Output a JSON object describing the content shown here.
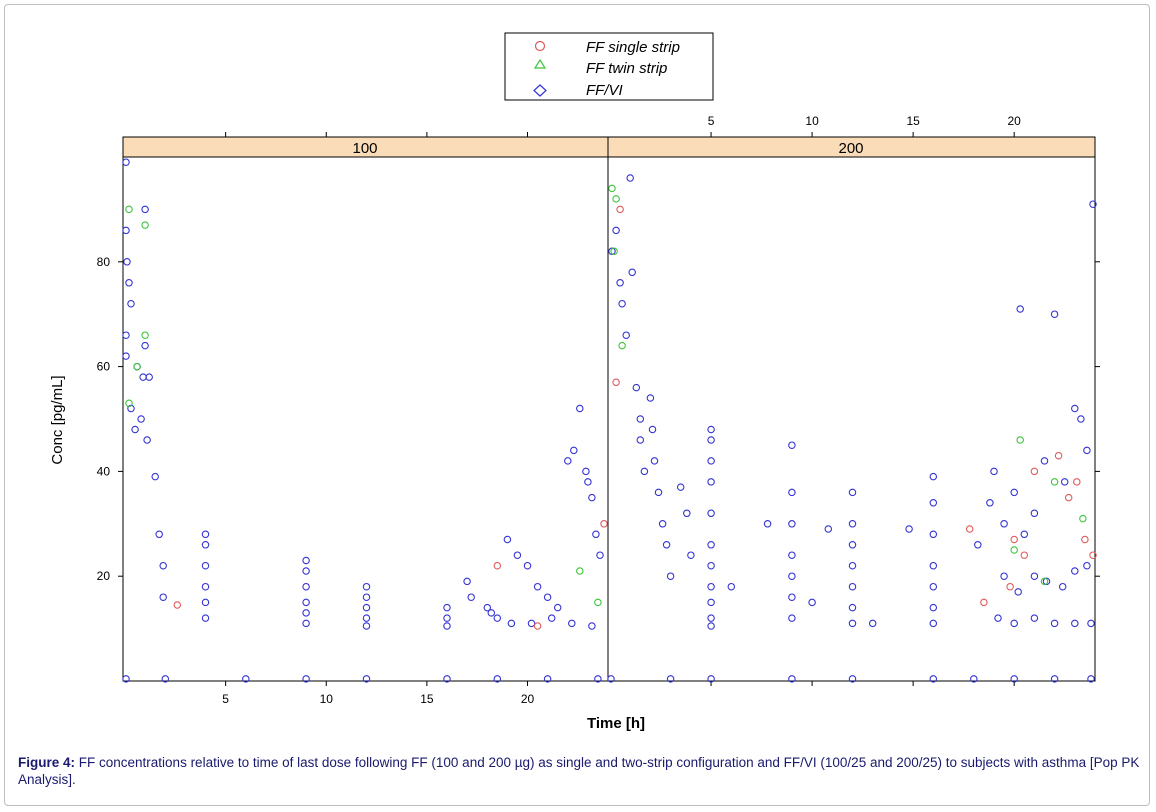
{
  "caption": {
    "label": "Figure 4:",
    "text": " FF concentrations relative to time of last dose following FF (100 and 200 µg) as single and two-strip configuration and FF/VI (100/25 and 200/25) to subjects with asthma [Pop PK Analysis]."
  },
  "chart_data": {
    "type": "scatter",
    "xlabel": "Time [h]",
    "ylabel": "Conc [pg/mL]",
    "xlim": [
      -0.1,
      24
    ],
    "ylim": [
      0,
      100
    ],
    "x_ticks": [
      "5",
      "10",
      "15",
      "20"
    ],
    "y_ticks": [
      "20",
      "40",
      "60",
      "80"
    ],
    "legend": [
      {
        "name": "FF single strip",
        "marker": "circle",
        "color": "#e05a5a"
      },
      {
        "name": "FF twin strip",
        "marker": "triangle",
        "color": "#3ec43e"
      },
      {
        "name": "FF/VI",
        "marker": "diamond",
        "color": "#3434d4"
      }
    ],
    "panels": [
      {
        "strip": "100",
        "series": [
          {
            "name": "FF/VI",
            "points": [
              [
                0.05,
                99
              ],
              [
                0.05,
                86
              ],
              [
                0.1,
                80
              ],
              [
                0.2,
                76
              ],
              [
                0.3,
                72
              ],
              [
                0.6,
                60
              ],
              [
                0.9,
                58
              ],
              [
                1.0,
                64
              ],
              [
                1.2,
                58
              ],
              [
                1.0,
                90
              ],
              [
                0.05,
                66
              ],
              [
                0.05,
                62
              ],
              [
                0.3,
                52
              ],
              [
                0.5,
                48
              ],
              [
                0.8,
                50
              ],
              [
                1.1,
                46
              ],
              [
                1.5,
                39
              ],
              [
                1.7,
                28
              ],
              [
                1.9,
                22
              ],
              [
                1.9,
                16
              ],
              [
                4.0,
                28
              ],
              [
                4.0,
                26
              ],
              [
                4.0,
                22
              ],
              [
                4.0,
                18
              ],
              [
                4.0,
                15
              ],
              [
                4.0,
                12
              ],
              [
                9.0,
                23
              ],
              [
                9.0,
                21
              ],
              [
                9.0,
                18
              ],
              [
                9.0,
                15
              ],
              [
                9.0,
                13
              ],
              [
                9.0,
                11
              ],
              [
                12.0,
                18
              ],
              [
                12.0,
                16
              ],
              [
                12.0,
                14
              ],
              [
                12.0,
                12
              ],
              [
                12.0,
                10.5
              ],
              [
                16.0,
                14
              ],
              [
                16.0,
                12
              ],
              [
                16.0,
                10.5
              ],
              [
                17.0,
                19
              ],
              [
                17.2,
                16
              ],
              [
                18.0,
                14
              ],
              [
                18.5,
                12
              ],
              [
                19.0,
                27
              ],
              [
                19.5,
                24
              ],
              [
                20.0,
                22
              ],
              [
                20.5,
                18
              ],
              [
                21.0,
                16
              ],
              [
                21.5,
                14
              ],
              [
                22.0,
                42
              ],
              [
                22.3,
                44
              ],
              [
                22.6,
                52
              ],
              [
                22.9,
                40
              ],
              [
                23.0,
                38
              ],
              [
                23.2,
                35
              ],
              [
                23.4,
                28
              ],
              [
                23.6,
                24
              ],
              [
                19.2,
                11
              ],
              [
                20.2,
                11
              ],
              [
                21.2,
                12
              ],
              [
                22.2,
                11
              ],
              [
                23.2,
                10.5
              ],
              [
                18.2,
                13
              ],
              [
                0.05,
                0.4
              ],
              [
                2.0,
                0.4
              ],
              [
                6.0,
                0.4
              ],
              [
                9.0,
                0.4
              ],
              [
                12.0,
                0.4
              ],
              [
                16.0,
                0.4
              ],
              [
                18.5,
                0.4
              ],
              [
                21.0,
                0.4
              ],
              [
                23.5,
                0.4
              ]
            ]
          },
          {
            "name": "FF single strip",
            "points": [
              [
                2.6,
                14.5
              ],
              [
                18.5,
                22
              ],
              [
                20.5,
                10.5
              ],
              [
                23.8,
                30
              ]
            ]
          },
          {
            "name": "FF twin strip",
            "points": [
              [
                0.2,
                90
              ],
              [
                1.0,
                87
              ],
              [
                1.0,
                66
              ],
              [
                0.6,
                60
              ],
              [
                0.2,
                53
              ],
              [
                22.6,
                21
              ],
              [
                23.5,
                15
              ]
            ]
          }
        ]
      },
      {
        "strip": "200",
        "series": [
          {
            "name": "FF/VI",
            "points": [
              [
                0.1,
                82
              ],
              [
                0.3,
                86
              ],
              [
                0.5,
                76
              ],
              [
                0.6,
                72
              ],
              [
                0.8,
                66
              ],
              [
                1.0,
                96
              ],
              [
                1.1,
                78
              ],
              [
                1.3,
                56
              ],
              [
                1.5,
                50
              ],
              [
                1.5,
                46
              ],
              [
                1.7,
                40
              ],
              [
                2.0,
                54
              ],
              [
                2.1,
                48
              ],
              [
                2.2,
                42
              ],
              [
                2.4,
                36
              ],
              [
                2.6,
                30
              ],
              [
                2.8,
                26
              ],
              [
                3.0,
                20
              ],
              [
                3.5,
                37
              ],
              [
                3.8,
                32
              ],
              [
                4.0,
                24
              ],
              [
                5.0,
                48
              ],
              [
                5.0,
                46
              ],
              [
                5.0,
                42
              ],
              [
                5.0,
                38
              ],
              [
                5.0,
                32
              ],
              [
                5.0,
                26
              ],
              [
                5.0,
                22
              ],
              [
                5.0,
                18
              ],
              [
                5.0,
                15
              ],
              [
                5.0,
                12
              ],
              [
                5.0,
                10.5
              ],
              [
                6.0,
                18
              ],
              [
                7.8,
                30
              ],
              [
                9.0,
                45
              ],
              [
                9.0,
                36
              ],
              [
                9.0,
                30
              ],
              [
                9.0,
                24
              ],
              [
                9.0,
                20
              ],
              [
                9.0,
                16
              ],
              [
                9.0,
                12
              ],
              [
                10.0,
                15
              ],
              [
                10.8,
                29
              ],
              [
                12.0,
                36
              ],
              [
                12.0,
                30
              ],
              [
                12.0,
                26
              ],
              [
                12.0,
                22
              ],
              [
                12.0,
                18
              ],
              [
                12.0,
                14
              ],
              [
                12.0,
                11
              ],
              [
                13.0,
                11
              ],
              [
                14.8,
                29
              ],
              [
                16.0,
                39
              ],
              [
                16.0,
                34
              ],
              [
                16.0,
                28
              ],
              [
                16.0,
                22
              ],
              [
                16.0,
                18
              ],
              [
                16.0,
                14
              ],
              [
                16.0,
                11
              ],
              [
                18.2,
                26
              ],
              [
                18.8,
                34
              ],
              [
                19.0,
                40
              ],
              [
                19.5,
                30
              ],
              [
                20.0,
                36
              ],
              [
                20.3,
                71
              ],
              [
                20.5,
                28
              ],
              [
                21.0,
                32
              ],
              [
                21.5,
                42
              ],
              [
                22.0,
                70
              ],
              [
                22.5,
                38
              ],
              [
                23.0,
                52
              ],
              [
                23.3,
                50
              ],
              [
                23.6,
                44
              ],
              [
                23.9,
                91
              ],
              [
                19.5,
                20
              ],
              [
                20.2,
                17
              ],
              [
                21.0,
                20
              ],
              [
                21.6,
                19
              ],
              [
                22.4,
                18
              ],
              [
                23.0,
                21
              ],
              [
                23.6,
                22
              ],
              [
                19.2,
                12
              ],
              [
                20.0,
                11
              ],
              [
                21.0,
                12
              ],
              [
                22.0,
                11
              ],
              [
                23.0,
                11
              ],
              [
                23.8,
                11
              ],
              [
                0.05,
                0.4
              ],
              [
                3.0,
                0.4
              ],
              [
                5.0,
                0.4
              ],
              [
                9.0,
                0.4
              ],
              [
                12.0,
                0.4
              ],
              [
                16.0,
                0.4
              ],
              [
                18.0,
                0.4
              ],
              [
                20.0,
                0.4
              ],
              [
                22.0,
                0.4
              ],
              [
                23.8,
                0.4
              ]
            ]
          },
          {
            "name": "FF single strip",
            "points": [
              [
                0.5,
                90
              ],
              [
                0.3,
                57
              ],
              [
                17.8,
                29
              ],
              [
                18.5,
                15
              ],
              [
                20.0,
                27
              ],
              [
                20.5,
                24
              ],
              [
                21.0,
                40
              ],
              [
                22.2,
                43
              ],
              [
                22.7,
                35
              ],
              [
                23.1,
                38
              ],
              [
                23.5,
                27
              ],
              [
                23.9,
                24
              ],
              [
                19.8,
                18
              ]
            ]
          },
          {
            "name": "FF twin strip",
            "points": [
              [
                0.1,
                94
              ],
              [
                0.3,
                92
              ],
              [
                0.2,
                82
              ],
              [
                0.6,
                64
              ],
              [
                20.3,
                46
              ],
              [
                20.0,
                25
              ],
              [
                22.0,
                38
              ],
              [
                23.4,
                31
              ],
              [
                21.5,
                19
              ]
            ]
          }
        ]
      }
    ],
    "grid": false
  }
}
